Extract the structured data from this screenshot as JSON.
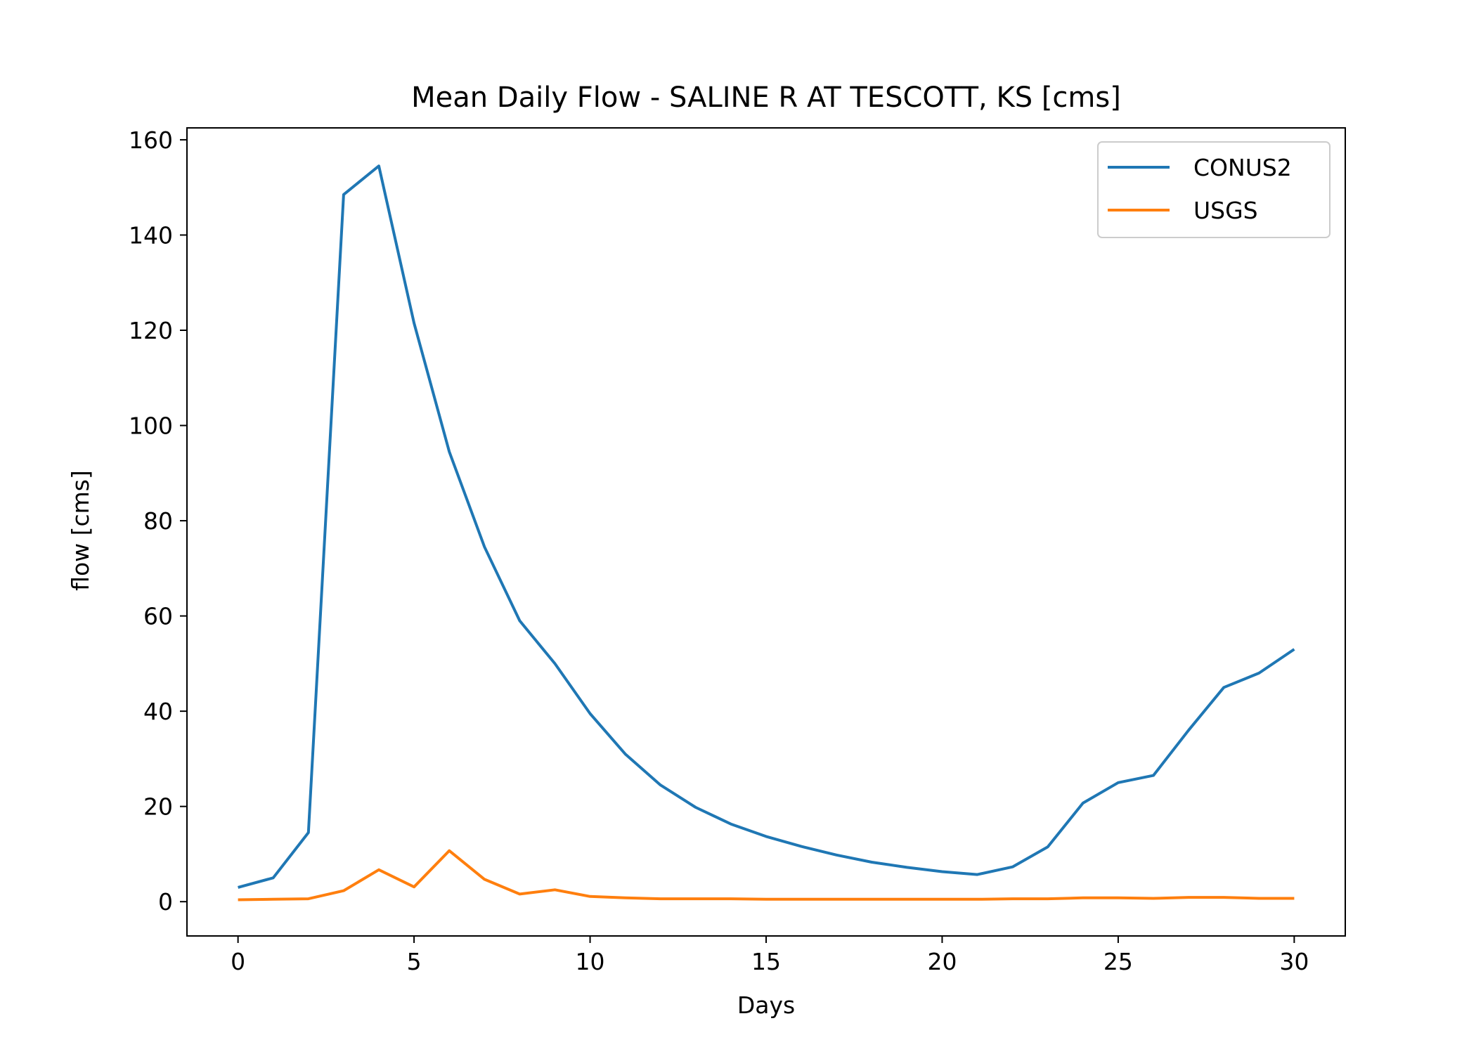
{
  "chart_data": {
    "type": "line",
    "title": "Mean Daily Flow - SALINE R AT TESCOTT, KS [cms]",
    "xlabel": "Days",
    "ylabel": "flow [cms]",
    "xlim": [
      -1.45,
      31.45
    ],
    "ylim": [
      -7.2,
      162.5
    ],
    "xticks": [
      0,
      5,
      10,
      15,
      20,
      25,
      30
    ],
    "yticks": [
      0,
      20,
      40,
      60,
      80,
      100,
      120,
      140,
      160
    ],
    "grid": false,
    "legend_position": "top-right",
    "x": [
      0,
      1,
      2,
      3,
      4,
      5,
      6,
      7,
      8,
      9,
      10,
      11,
      12,
      13,
      14,
      15,
      16,
      17,
      18,
      19,
      20,
      21,
      22,
      23,
      24,
      25,
      26,
      27,
      28,
      29,
      30
    ],
    "series": [
      {
        "name": "CONUS2",
        "color": "#1f77b4",
        "values": [
          3.0,
          5.0,
          14.5,
          148.5,
          154.5,
          121.5,
          94.5,
          74.5,
          59.0,
          50.0,
          39.5,
          31.0,
          24.5,
          19.8,
          16.3,
          13.7,
          11.6,
          9.8,
          8.3,
          7.2,
          6.3,
          5.7,
          7.3,
          11.5,
          20.7,
          25.0,
          26.5,
          36.0,
          45.0,
          48.0,
          53.0
        ]
      },
      {
        "name": "USGS",
        "color": "#ff7f0e",
        "values": [
          0.4,
          0.5,
          0.6,
          2.3,
          6.7,
          3.1,
          10.7,
          4.7,
          1.6,
          2.5,
          1.1,
          0.8,
          0.6,
          0.6,
          0.6,
          0.5,
          0.5,
          0.5,
          0.5,
          0.5,
          0.5,
          0.5,
          0.6,
          0.6,
          0.8,
          0.8,
          0.7,
          0.9,
          0.9,
          0.7,
          0.7
        ]
      }
    ]
  }
}
